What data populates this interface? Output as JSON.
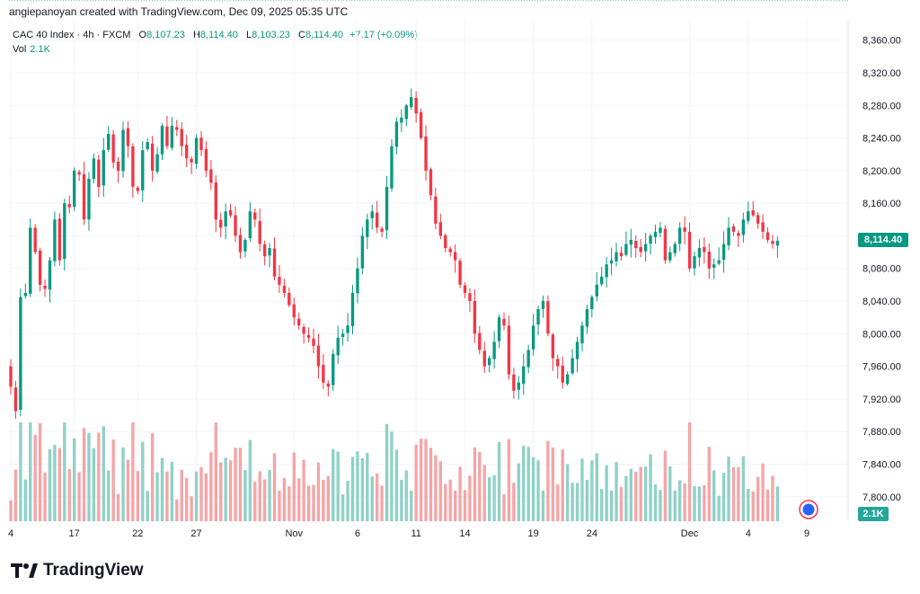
{
  "header": {
    "attribution": "angiepanoyan created with TradingView.com, Dec 09, 2025 05:35 UTC"
  },
  "legend": {
    "symbol": "CAC 40 Index · 4h · FXCM",
    "open_key": "O",
    "open": "8,107.23",
    "high_key": "H",
    "high": "8,114.40",
    "low_key": "L",
    "low": "8,103.23",
    "close_key": "C",
    "close": "8,114.40",
    "change": "+7.17 (+0.09%)",
    "vol_label": "Vol",
    "vol_value": "2.1K"
  },
  "price_tag": "8,114.40",
  "vol_tag": "2.1K",
  "footer": {
    "brand": "TradingView"
  },
  "colors": {
    "up": "#089981",
    "down": "#f23645",
    "vol_up": "#8fd1c6",
    "vol_down": "#f5a5a7",
    "grid": "#f0f3fa"
  },
  "chart_data": {
    "type": "candlestick",
    "title": "CAC 40 Index · 4h · FXCM",
    "y_ticks": [
      "8,360.00",
      "8,320.00",
      "8,280.00",
      "8,240.00",
      "8,200.00",
      "8,160.00",
      "8,120.00",
      "8,080.00",
      "8,040.00",
      "8,000.00",
      "7,960.00",
      "7,920.00",
      "7,880.00",
      "7,840.00",
      "7,800.00"
    ],
    "y_tick_values": [
      8360,
      8320,
      8280,
      8240,
      8200,
      8160,
      8120,
      8080,
      8040,
      8000,
      7960,
      7920,
      7880,
      7840,
      7800
    ],
    "ylim": [
      7770,
      8385
    ],
    "x_ticks": [
      "4",
      "17",
      "22",
      "27",
      "Nov",
      "6",
      "11",
      "14",
      "19",
      "24",
      "Dec",
      "4",
      "9"
    ],
    "x_tick_index": [
      0,
      13,
      26,
      38,
      58,
      71,
      83,
      93,
      107,
      119,
      139,
      151,
      163
    ],
    "num_bars": 164,
    "closes": [
      7935,
      7905,
      8045,
      8050,
      8130,
      8100,
      8060,
      8055,
      8090,
      8140,
      8090,
      8160,
      8155,
      8200,
      8195,
      8140,
      8190,
      8215,
      8180,
      8225,
      8245,
      8210,
      8200,
      8250,
      8230,
      8180,
      8175,
      8225,
      8235,
      8200,
      8220,
      8255,
      8230,
      8255,
      8250,
      8230,
      8215,
      8210,
      8240,
      8225,
      8200,
      8185,
      8140,
      8130,
      8150,
      8145,
      8120,
      8100,
      8115,
      8150,
      8140,
      8110,
      8095,
      8105,
      8070,
      8060,
      8050,
      8035,
      8020,
      8010,
      8000,
      7995,
      7985,
      7960,
      7940,
      7935,
      7975,
      7995,
      8000,
      8010,
      8050,
      8080,
      8120,
      8140,
      8150,
      8130,
      8125,
      8180,
      8230,
      8260,
      8265,
      8280,
      8290,
      8270,
      8240,
      8200,
      8170,
      8135,
      8120,
      8105,
      8100,
      8090,
      8060,
      8050,
      8040,
      8000,
      7980,
      7960,
      7970,
      7990,
      8020,
      8010,
      7950,
      7930,
      7940,
      7960,
      7980,
      8010,
      8030,
      8040,
      8000,
      7970,
      7960,
      7940,
      7950,
      7970,
      7990,
      8010,
      8030,
      8045,
      8060,
      8070,
      8085,
      8090,
      8100,
      8095,
      8110,
      8115,
      8105,
      8100,
      8110,
      8120,
      8125,
      8130,
      8090,
      8100,
      8110,
      8130,
      8125,
      8080,
      8095,
      8105,
      8100,
      8080,
      8085,
      8090,
      8110,
      8130,
      8125,
      8120,
      8140,
      8150,
      8145,
      8135,
      8125,
      8115,
      8110,
      8114
    ]
  }
}
